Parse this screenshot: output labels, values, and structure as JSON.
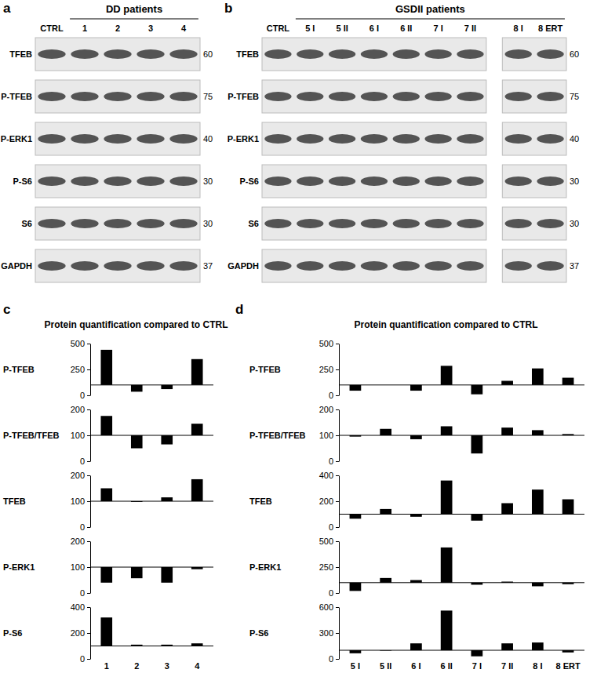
{
  "figure": {
    "blots": [
      {
        "letter": "a",
        "header": "DD patients",
        "groups": [
          [
            "CTRL",
            "1",
            "2",
            "3",
            "4"
          ]
        ],
        "rows": [
          {
            "label": "TFEB",
            "mw": 60
          },
          {
            "label": "P-TFEB",
            "mw": 75
          },
          {
            "label": "P-ERK1",
            "mw": 40
          },
          {
            "label": "P-S6",
            "mw": 30
          },
          {
            "label": "S6",
            "mw": 30
          },
          {
            "label": "GAPDH",
            "mw": 37
          }
        ]
      },
      {
        "letter": "b",
        "header": "GSDII patients",
        "groups": [
          [
            "CTRL",
            "5 I",
            "5 II",
            "6 I",
            "6 II",
            "7 I",
            "7 II"
          ],
          [
            "8 I",
            "8 ERT"
          ]
        ],
        "rows": [
          {
            "label": "TFEB",
            "mw": 60
          },
          {
            "label": "P-TFEB",
            "mw": 75
          },
          {
            "label": "P-ERK1",
            "mw": 40
          },
          {
            "label": "P-S6",
            "mw": 30
          },
          {
            "label": "S6",
            "mw": 30
          },
          {
            "label": "GAPDH",
            "mw": 37
          }
        ]
      }
    ],
    "quant": [
      {
        "letter": "c",
        "heading": "Protein quantification compared to CTRL"
      },
      {
        "letter": "d",
        "heading": "Protein quantification compared to CTRL"
      }
    ]
  },
  "chart_data": [
    {
      "type": "bar",
      "title": "P-TFEB",
      "categories": [
        "1",
        "2",
        "3",
        "4"
      ],
      "values": [
        440,
        35,
        60,
        350
      ],
      "baseline": 100,
      "ylim": [
        0,
        500
      ],
      "yticks": [
        0,
        250,
        500
      ],
      "color": "#000000",
      "tick_labels": "y"
    },
    {
      "type": "bar",
      "title": "P-TFEB/TFEB",
      "categories": [
        "1",
        "2",
        "3",
        "4"
      ],
      "values": [
        175,
        50,
        65,
        145
      ],
      "baseline": 100,
      "ylim": [
        0,
        200
      ],
      "yticks": [
        0,
        100,
        200
      ],
      "color": "#000000",
      "tick_labels": "y"
    },
    {
      "type": "bar",
      "title": "TFEB",
      "categories": [
        "1",
        "2",
        "3",
        "4"
      ],
      "values": [
        150,
        97,
        115,
        185
      ],
      "baseline": 100,
      "ylim": [
        0,
        200
      ],
      "yticks": [
        0,
        100,
        200
      ],
      "color": "#000000",
      "tick_labels": "y"
    },
    {
      "type": "bar",
      "title": "P-ERK1",
      "categories": [
        "1",
        "2",
        "3",
        "4"
      ],
      "values": [
        40,
        57,
        40,
        92
      ],
      "baseline": 100,
      "ylim": [
        0,
        200
      ],
      "yticks": [
        0,
        100,
        200
      ],
      "color": "#000000",
      "tick_labels": "y"
    },
    {
      "type": "bar",
      "title": "P-S6",
      "categories": [
        "1",
        "2",
        "3",
        "4"
      ],
      "values": [
        320,
        110,
        110,
        120
      ],
      "baseline": 100,
      "ylim": [
        0,
        400
      ],
      "yticks": [
        0,
        200,
        400
      ],
      "color": "#000000"
    },
    {
      "type": "bar",
      "title": "P-TFEB",
      "categories": [
        "5 I",
        "5 II",
        "6 I",
        "6 II",
        "7 I",
        "7 II",
        "8 I",
        "8 ERT"
      ],
      "values": [
        45,
        100,
        45,
        285,
        10,
        140,
        260,
        170
      ],
      "baseline": 100,
      "ylim": [
        0,
        500
      ],
      "yticks": [
        0,
        250,
        500
      ],
      "color": "#000000",
      "tick_labels": "y"
    },
    {
      "type": "bar",
      "title": "P-TFEB/TFEB",
      "categories": [
        "5 I",
        "5 II",
        "6 I",
        "6 II",
        "7 I",
        "7 II",
        "8 I",
        "8 ERT"
      ],
      "values": [
        95,
        125,
        85,
        135,
        30,
        130,
        120,
        105
      ],
      "baseline": 100,
      "ylim": [
        0,
        200
      ],
      "yticks": [
        0,
        100,
        200
      ],
      "color": "#000000",
      "tick_labels": "y"
    },
    {
      "type": "bar",
      "title": "TFEB",
      "categories": [
        "5 I",
        "5 II",
        "6 I",
        "6 II",
        "7 I",
        "7 II",
        "8 I",
        "8 ERT"
      ],
      "values": [
        65,
        140,
        80,
        360,
        50,
        185,
        290,
        215
      ],
      "baseline": 100,
      "ylim": [
        0,
        400
      ],
      "yticks": [
        0,
        200,
        400
      ],
      "color": "#000000",
      "tick_labels": "y"
    },
    {
      "type": "bar",
      "title": "P-ERK1",
      "categories": [
        "5 I",
        "5 II",
        "6 I",
        "6 II",
        "7 I",
        "7 II",
        "8 I",
        "8 ERT"
      ],
      "values": [
        20,
        145,
        125,
        440,
        80,
        110,
        65,
        85
      ],
      "baseline": 100,
      "ylim": [
        0,
        500
      ],
      "yticks": [
        0,
        250,
        500
      ],
      "color": "#000000",
      "tick_labels": "y"
    },
    {
      "type": "bar",
      "title": "P-S6",
      "categories": [
        "5 I",
        "5 II",
        "6 I",
        "6 II",
        "7 I",
        "7 II",
        "8 I",
        "8 ERT"
      ],
      "values": [
        65,
        95,
        180,
        560,
        30,
        180,
        190,
        75
      ],
      "baseline": 100,
      "ylim": [
        0,
        600
      ],
      "yticks": [
        0,
        300,
        600
      ],
      "color": "#000000"
    }
  ]
}
